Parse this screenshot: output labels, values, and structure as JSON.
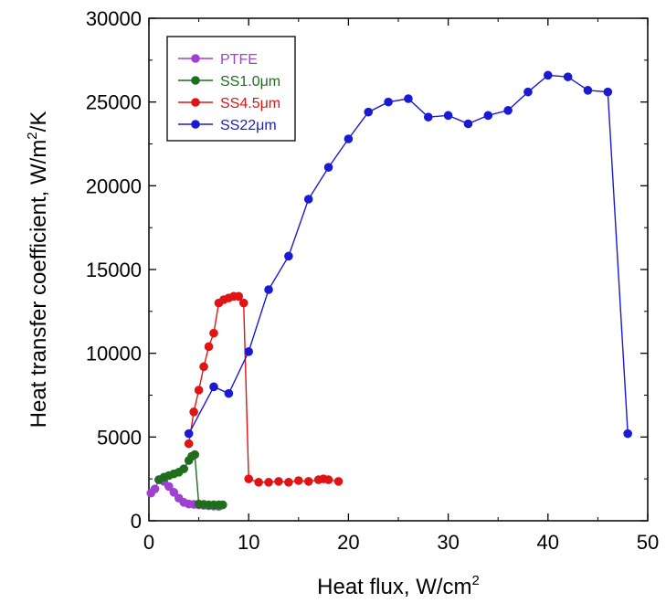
{
  "chart_data": {
    "type": "line",
    "title": "",
    "xlabel": "Heat flux, W/cm",
    "xlabel_sup": "2",
    "ylabel": "Heat transfer coefficient, W/m",
    "ylabel_sup": "2",
    "ylabel_suffix": "/K",
    "xlim": [
      0,
      50
    ],
    "ylim": [
      0,
      30000
    ],
    "x_ticks": [
      0,
      10,
      20,
      30,
      40,
      50
    ],
    "y_ticks": [
      0,
      5000,
      10000,
      15000,
      20000,
      25000,
      30000
    ],
    "grid": false,
    "legend_position": "top-left",
    "series": [
      {
        "name": "PTFE",
        "color": "#a040d0",
        "points": [
          [
            0.2,
            1650
          ],
          [
            0.6,
            1900
          ],
          [
            1.0,
            2450
          ],
          [
            1.5,
            2350
          ],
          [
            2.0,
            2050
          ],
          [
            2.5,
            1700
          ],
          [
            3.0,
            1350
          ],
          [
            3.5,
            1100
          ],
          [
            4.0,
            1000
          ],
          [
            4.5,
            980
          ],
          [
            5.0,
            950
          ],
          [
            5.5,
            920
          ],
          [
            6.0,
            900
          ],
          [
            6.5,
            880
          ],
          [
            7.0,
            860
          ]
        ]
      },
      {
        "name": "SS1.0μm",
        "color": "#1e6e1e",
        "points": [
          [
            1.0,
            2450
          ],
          [
            1.5,
            2600
          ],
          [
            2.0,
            2700
          ],
          [
            2.5,
            2800
          ],
          [
            3.0,
            2900
          ],
          [
            3.5,
            3100
          ],
          [
            4.0,
            3600
          ],
          [
            4.3,
            3850
          ],
          [
            4.6,
            3950
          ],
          [
            5.0,
            1000
          ],
          [
            5.5,
            980
          ],
          [
            6.0,
            950
          ],
          [
            6.5,
            950
          ],
          [
            7.0,
            950
          ],
          [
            7.4,
            950
          ]
        ]
      },
      {
        "name": "SS4.5μm",
        "color": "#e01414",
        "points": [
          [
            4.0,
            4600
          ],
          [
            4.5,
            6500
          ],
          [
            5.0,
            7800
          ],
          [
            5.5,
            9200
          ],
          [
            6.0,
            10400
          ],
          [
            6.5,
            11200
          ],
          [
            7.0,
            13000
          ],
          [
            7.5,
            13200
          ],
          [
            8.0,
            13300
          ],
          [
            8.5,
            13400
          ],
          [
            9.0,
            13400
          ],
          [
            9.5,
            13000
          ],
          [
            10.0,
            2500
          ],
          [
            11.0,
            2300
          ],
          [
            12.0,
            2300
          ],
          [
            13.0,
            2350
          ],
          [
            14.0,
            2300
          ],
          [
            15.0,
            2400
          ],
          [
            16.0,
            2350
          ],
          [
            17.0,
            2450
          ],
          [
            17.5,
            2500
          ],
          [
            18.0,
            2450
          ],
          [
            19.0,
            2350
          ]
        ]
      },
      {
        "name": "SS22μm",
        "color": "#1a1ad2",
        "points": [
          [
            4.0,
            5200
          ],
          [
            6.5,
            8000
          ],
          [
            8.0,
            7600
          ],
          [
            10.0,
            10100
          ],
          [
            12.0,
            13800
          ],
          [
            14.0,
            15800
          ],
          [
            16.0,
            19200
          ],
          [
            18.0,
            21100
          ],
          [
            20.0,
            22800
          ],
          [
            22.0,
            24400
          ],
          [
            24.0,
            25000
          ],
          [
            26.0,
            25200
          ],
          [
            28.0,
            24100
          ],
          [
            30.0,
            24200
          ],
          [
            32.0,
            23700
          ],
          [
            34.0,
            24200
          ],
          [
            36.0,
            24500
          ],
          [
            38.0,
            25600
          ],
          [
            40.0,
            26600
          ],
          [
            42.0,
            26500
          ],
          [
            44.0,
            25700
          ],
          [
            46.0,
            25600
          ],
          [
            48.0,
            5200
          ]
        ]
      }
    ]
  }
}
